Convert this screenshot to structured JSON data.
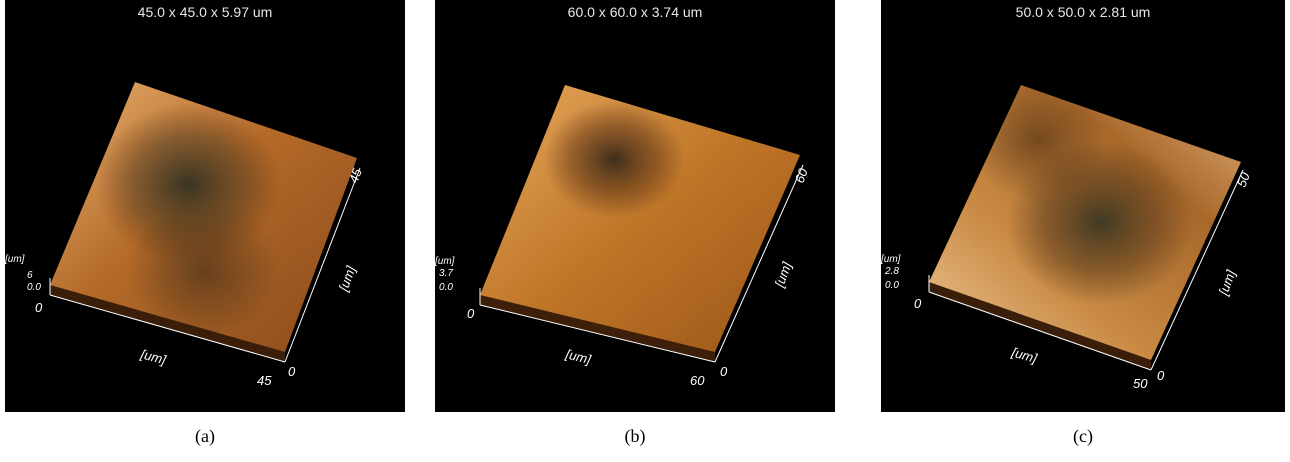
{
  "panels": [
    {
      "id": "a",
      "header": "45.0 x 45.0 x 5.97 um",
      "caption": "(a)",
      "x_label": "[um]",
      "y_label": "[um]",
      "z_label": "[um]",
      "x_ticks": [
        "0",
        "45"
      ],
      "y_ticks": [
        "0",
        "45"
      ],
      "z_ticks": [
        "6",
        "0.0"
      ]
    },
    {
      "id": "b",
      "header": "60.0 x 60.0 x 3.74 um",
      "caption": "(b)",
      "x_label": "[um]",
      "y_label": "[um]",
      "z_label": "[um]",
      "x_ticks": [
        "0",
        "60"
      ],
      "y_ticks": [
        "0",
        "60"
      ],
      "z_ticks": [
        "3.7",
        "0.0"
      ]
    },
    {
      "id": "c",
      "header": "50.0 x 50.0 x 2.81 um",
      "caption": "(c)",
      "x_label": "[um]",
      "y_label": "[um]",
      "z_label": "[um]",
      "x_ticks": [
        "0",
        "50"
      ],
      "y_ticks": [
        "0",
        "50"
      ],
      "z_ticks": [
        "2.8",
        "0.0"
      ]
    }
  ],
  "colors": {
    "background": "#000000",
    "surface_light": "#e0a060",
    "surface_mid": "#b86a26",
    "surface_dark": "#2a2a1e",
    "axis": "#ffffff"
  }
}
